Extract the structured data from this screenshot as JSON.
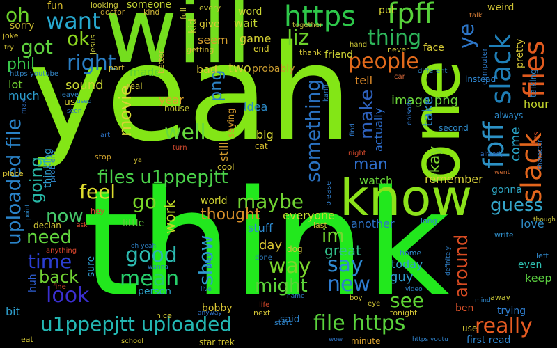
{
  "words": [
    {
      "text": "yeah",
      "color": "#83e616"
    },
    {
      "text": "think",
      "color": "#22e81d"
    },
    {
      "text": "will",
      "color": "#74de1e"
    },
    {
      "text": "one",
      "color": "#8ae512"
    },
    {
      "text": "know",
      "color": "#8be21a"
    },
    {
      "text": "https",
      "color": "#2ec84a"
    },
    {
      "text": "fpff",
      "color": "#57d23a"
    },
    {
      "text": "slack",
      "color": "#1f7fb7"
    },
    {
      "text": "files",
      "color": "#e05a1e"
    },
    {
      "text": "fpff",
      "color": "#2c91c5"
    },
    {
      "text": "slack",
      "color": "#e3661d"
    },
    {
      "text": "files",
      "color": "#d94d24"
    },
    {
      "text": "want",
      "color": "#27a9d0"
    },
    {
      "text": "oh",
      "color": "#6cd22a"
    },
    {
      "text": "got",
      "color": "#5fd23e"
    },
    {
      "text": "ok",
      "color": "#8bd61f"
    },
    {
      "text": "thing",
      "color": "#2db55a"
    },
    {
      "text": "liz",
      "color": "#6dd12a"
    },
    {
      "text": "right",
      "color": "#2a7fc5"
    },
    {
      "text": "people",
      "color": "#e16a1c"
    },
    {
      "text": "phil",
      "color": "#39c74a"
    },
    {
      "text": "something",
      "color": "#2a71c0"
    },
    {
      "text": "make",
      "color": "#2e61bd"
    },
    {
      "text": "ye",
      "color": "#2c74c5"
    },
    {
      "text": "uploaded file",
      "color": "#2a83c8"
    },
    {
      "text": "files u1ppepjtt",
      "color": "#4bd24a"
    },
    {
      "text": "going",
      "color": "#27b8a6"
    },
    {
      "text": "thinking",
      "color": "#2e9bca"
    },
    {
      "text": "movie",
      "color": "#d5d635"
    },
    {
      "text": "well",
      "color": "#66d93d"
    },
    {
      "text": "feel",
      "color": "#dddc2e"
    },
    {
      "text": "go",
      "color": "#79d528"
    },
    {
      "text": "work",
      "color": "#c1d926"
    },
    {
      "text": "png",
      "color": "#2d81c2"
    },
    {
      "text": "image png",
      "color": "#6bd73a"
    },
    {
      "text": "okay",
      "color": "#7ed82e"
    },
    {
      "text": "now",
      "color": "#45c86a"
    },
    {
      "text": "maybe",
      "color": "#6fd232"
    },
    {
      "text": "guess",
      "color": "#35a4c8"
    },
    {
      "text": "need",
      "color": "#63d63e"
    },
    {
      "text": "im",
      "color": "#73d930"
    },
    {
      "text": "around",
      "color": "#d84b22"
    },
    {
      "text": "time",
      "color": "#2b3ed1"
    },
    {
      "text": "good",
      "color": "#2cb9b0"
    },
    {
      "text": "mean",
      "color": "#27cd6a"
    },
    {
      "text": "way",
      "color": "#7ad52c"
    },
    {
      "text": "say",
      "color": "#2f8bd3"
    },
    {
      "text": "back",
      "color": "#71d233"
    },
    {
      "text": "look",
      "color": "#3a2fd0"
    },
    {
      "text": "show",
      "color": "#2f9ccf"
    },
    {
      "text": "might",
      "color": "#5cd23a"
    },
    {
      "text": "new",
      "color": "#2e7bd0"
    },
    {
      "text": "see",
      "color": "#5fd534"
    },
    {
      "text": "u1ppepjtt uploaded",
      "color": "#23b7b3"
    },
    {
      "text": "file https",
      "color": "#5ad33c"
    },
    {
      "text": "really",
      "color": "#e85c22"
    },
    {
      "text": "thought",
      "color": "#d8902a"
    },
    {
      "text": "everyone",
      "color": "#c7d932"
    },
    {
      "text": "remember",
      "color": "#d8d13a"
    },
    {
      "text": "gonna",
      "color": "#2ea7c5"
    },
    {
      "text": "love",
      "color": "#2e8cc6"
    },
    {
      "text": "keep",
      "color": "#5bcf40"
    },
    {
      "text": "even",
      "color": "#2ebfb0"
    },
    {
      "text": "great",
      "color": "#33c28c"
    },
    {
      "text": "guy",
      "color": "#2f9ace"
    },
    {
      "text": "today",
      "color": "#2fa1c9"
    },
    {
      "text": "day",
      "color": "#d8c532"
    },
    {
      "text": "stuff",
      "color": "#2e8ad0"
    },
    {
      "text": "another",
      "color": "#2d73c8"
    },
    {
      "text": "watch",
      "color": "#67d238"
    },
    {
      "text": "man",
      "color": "#2f6ecb"
    },
    {
      "text": "come",
      "color": "#2aa5c8"
    },
    {
      "text": "take",
      "color": "#2b86c9"
    },
    {
      "text": "hour",
      "color": "#c3d52c"
    },
    {
      "text": "actually",
      "color": "#2e6fd0"
    },
    {
      "text": "idea",
      "color": "#2c8cc9"
    },
    {
      "text": "still",
      "color": "#d09a2e"
    },
    {
      "text": "saying",
      "color": "#d2982c"
    },
    {
      "text": "year",
      "color": "#dca42c"
    },
    {
      "text": "made",
      "color": "#5fd134"
    },
    {
      "text": "bad",
      "color": "#d8c334"
    },
    {
      "text": "two",
      "color": "#cfd232"
    },
    {
      "text": "probably",
      "color": "#c79a30"
    },
    {
      "text": "tell",
      "color": "#dd8a2a"
    },
    {
      "text": "sound",
      "color": "#c9d632"
    },
    {
      "text": "lot",
      "color": "#72d132"
    },
    {
      "text": "much",
      "color": "#2c9ccc"
    },
    {
      "text": "us",
      "color": "#d9cf34"
    },
    {
      "text": "sure",
      "color": "#2e98cc"
    },
    {
      "text": "huh",
      "color": "#2e5ed2"
    },
    {
      "text": "bit",
      "color": "#2d9bc8"
    },
    {
      "text": "person",
      "color": "#2da3c8"
    },
    {
      "text": "bobby",
      "color": "#d9c533"
    },
    {
      "text": "said",
      "color": "#2e84cd"
    },
    {
      "text": "star trek",
      "color": "#d5c833"
    },
    {
      "text": "first read",
      "color": "#2f86cf"
    },
    {
      "text": "ben",
      "color": "#d8512a"
    },
    {
      "text": "trying",
      "color": "#2f7ed0"
    },
    {
      "text": "big",
      "color": "#dada33"
    },
    {
      "text": "cat",
      "color": "#d8c030"
    },
    {
      "text": "cool",
      "color": "#d2c33a"
    },
    {
      "text": "dog",
      "color": "#cfc33a"
    },
    {
      "text": "world",
      "color": "#cdd132"
    },
    {
      "text": "little",
      "color": "#5dcd3a"
    },
    {
      "text": "wait",
      "color": "#c4d732"
    },
    {
      "text": "seem",
      "color": "#d6a02e"
    },
    {
      "text": "game",
      "color": "#d4d133"
    },
    {
      "text": "end",
      "color": "#d6cc32"
    },
    {
      "text": "word",
      "color": "#cbd634"
    },
    {
      "text": "someone",
      "color": "#c3d434"
    },
    {
      "text": "fun",
      "color": "#d9bd2e"
    },
    {
      "text": "sorry",
      "color": "#c8b930"
    },
    {
      "text": "joke",
      "color": "#c9b631"
    },
    {
      "text": "kid",
      "color": "#cfd035"
    },
    {
      "text": "give",
      "color": "#d6c435"
    },
    {
      "text": "put",
      "color": "#d5d134"
    },
    {
      "text": "face",
      "color": "#d2c735"
    },
    {
      "text": "weird",
      "color": "#cfc335"
    },
    {
      "text": "pretty",
      "color": "#d2c336"
    },
    {
      "text": "friend",
      "color": "#cdd334"
    },
    {
      "text": "instead",
      "color": "#2f86cf"
    },
    {
      "text": "second",
      "color": "#2f8ccc"
    },
    {
      "text": "always",
      "color": "#2e8ed0"
    },
    {
      "text": "computer",
      "color": "#2d7ac9"
    },
    {
      "text": "talking",
      "color": "#2b82c4"
    },
    {
      "text": "house",
      "color": "#c2c235"
    },
    {
      "text": "real",
      "color": "#cdc637"
    },
    {
      "text": "part",
      "color": "#d2c037"
    },
    {
      "text": "better",
      "color": "#cdbd38"
    },
    {
      "text": "getting",
      "color": "#d3bb37"
    },
    {
      "text": "doctor",
      "color": "#c7a433"
    },
    {
      "text": "kind",
      "color": "#d2b939"
    },
    {
      "text": "full",
      "color": "#c7c33b"
    },
    {
      "text": "every",
      "color": "#c5c23b"
    },
    {
      "text": "together",
      "color": "#c2c23c"
    },
    {
      "text": "looking",
      "color": "#c4c13a"
    },
    {
      "text": "jesus",
      "color": "#c0c23a"
    },
    {
      "text": "thank",
      "color": "#cfc136"
    },
    {
      "text": "hand",
      "color": "#c9c437"
    },
    {
      "text": "never",
      "color": "#cec437"
    },
    {
      "text": "talk",
      "color": "#d17a35"
    },
    {
      "text": "different",
      "color": "#2f8bc9"
    },
    {
      "text": "car",
      "color": "#d2673a"
    },
    {
      "text": "https youtube",
      "color": "#3282c0"
    },
    {
      "text": "leave",
      "color": "#2e80c2"
    },
    {
      "text": "max",
      "color": "#2f70c8"
    },
    {
      "text": "karin",
      "color": "#2d7bc2"
    },
    {
      "text": "used",
      "color": "#2e88c5"
    },
    {
      "text": "seen",
      "color": "#3078c2"
    },
    {
      "text": "episode",
      "color": "#2e74c2"
    },
    {
      "text": "art",
      "color": "#2d72c4"
    },
    {
      "text": "turn",
      "color": "#d04a2e"
    },
    {
      "text": "find",
      "color": "#2f76c2"
    },
    {
      "text": "night",
      "color": "#d74a2c"
    },
    {
      "text": "stop",
      "color": "#d3a62f"
    },
    {
      "text": "ya",
      "color": "#d4c234"
    },
    {
      "text": "place",
      "color": "#d4c033"
    },
    {
      "text": "problem",
      "color": "#2d7fc2"
    },
    {
      "text": "point",
      "color": "#2c86c4"
    },
    {
      "text": "declan",
      "color": "#cfc436"
    },
    {
      "text": "hey",
      "color": "#d44a30"
    },
    {
      "text": "ask",
      "color": "#d84a2d"
    },
    {
      "text": "already",
      "color": "#2f70c5"
    },
    {
      "text": "went",
      "color": "#d06a32"
    },
    {
      "text": "character",
      "color": "#2f78c5"
    },
    {
      "text": "though",
      "color": "#c6c236"
    },
    {
      "text": "long",
      "color": "#2e88c6"
    },
    {
      "text": "please",
      "color": "#2f7ac4"
    },
    {
      "text": "last",
      "color": "#cdc135"
    },
    {
      "text": "write",
      "color": "#2f8bc5"
    },
    {
      "text": "oh yeah",
      "color": "#2e80c4"
    },
    {
      "text": "anything",
      "color": "#d8452c"
    },
    {
      "text": "wanna",
      "color": "#2e7cc6"
    },
    {
      "text": "done",
      "color": "#2f80c4"
    },
    {
      "text": "home",
      "color": "#2f88c5"
    },
    {
      "text": "definitely",
      "color": "#2e7dc3"
    },
    {
      "text": "left",
      "color": "#2f85c6"
    },
    {
      "text": "play",
      "color": "#2d71c5"
    },
    {
      "text": "live",
      "color": "#2e7bc4"
    },
    {
      "text": "fine",
      "color": "#d2492c"
    },
    {
      "text": "video",
      "color": "#2e80c5"
    },
    {
      "text": "mind",
      "color": "#2e83c5"
    },
    {
      "text": "away",
      "color": "#c5c437"
    },
    {
      "text": "name",
      "color": "#2f7cc6"
    },
    {
      "text": "boy",
      "color": "#cfc436"
    },
    {
      "text": "nice",
      "color": "#cbc135"
    },
    {
      "text": "anyway",
      "color": "#2f72c5"
    },
    {
      "text": "life",
      "color": "#d84a2b"
    },
    {
      "text": "next",
      "color": "#cfc136"
    },
    {
      "text": "eye",
      "color": "#ccc236"
    },
    {
      "text": "tonight",
      "color": "#d1c237"
    },
    {
      "text": "start",
      "color": "#2e80c4"
    },
    {
      "text": "wow",
      "color": "#2e73c4"
    },
    {
      "text": "minute",
      "color": "#d6a02f"
    },
    {
      "text": "https youtu",
      "color": "#2e7ec5"
    },
    {
      "text": "use",
      "color": "#d0c336"
    },
    {
      "text": "school",
      "color": "#cfc236"
    },
    {
      "text": "eat",
      "color": "#cec236"
    },
    {
      "text": "try",
      "color": "#cdc134"
    }
  ]
}
